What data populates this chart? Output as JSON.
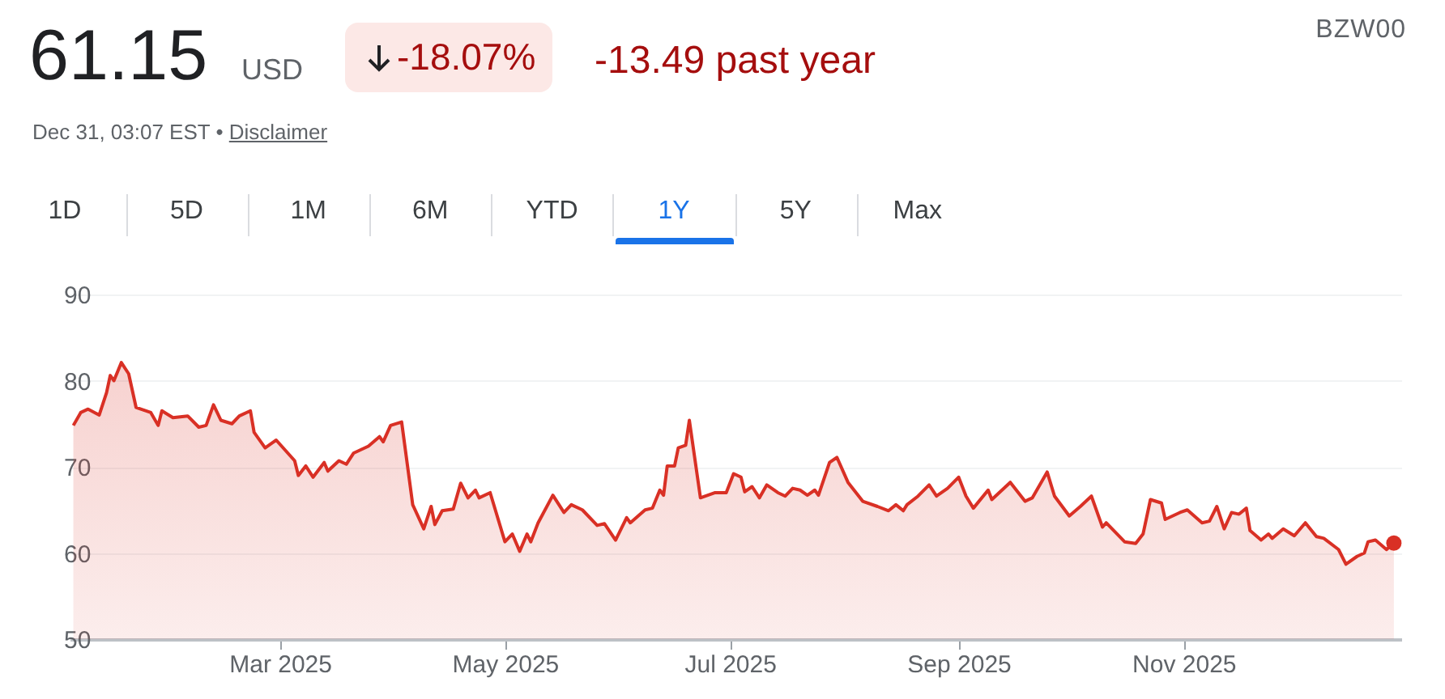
{
  "chart_data": {
    "type": "area",
    "title": "61.15",
    "annotations": [
      "USD",
      "-18.07%",
      "-13.49 past year",
      "Dec 31, 03:07 EST •",
      "Disclaimer",
      "BZW00",
      "1D",
      "5D",
      "1M",
      "6M",
      "YTD",
      "1Y",
      "5Y",
      "Max"
    ],
    "x": [
      "2025-01-04",
      "2025-01-06",
      "2025-01-08",
      "2025-01-11",
      "2025-01-13",
      "2025-01-14",
      "2025-01-15",
      "2025-01-17",
      "2025-01-19",
      "2025-01-21",
      "2025-01-25",
      "2025-01-27",
      "2025-01-28",
      "2025-01-31",
      "2025-02-04",
      "2025-02-07",
      "2025-02-09",
      "2025-02-11",
      "2025-02-13",
      "2025-02-16",
      "2025-02-18",
      "2025-02-21",
      "2025-02-22",
      "2025-02-25",
      "2025-02-28",
      "2025-03-05",
      "2025-03-06",
      "2025-03-08",
      "2025-03-10",
      "2025-03-13",
      "2025-03-14",
      "2025-03-17",
      "2025-03-19",
      "2025-03-21",
      "2025-03-25",
      "2025-03-28",
      "2025-03-29",
      "2025-03-31",
      "2025-04-03",
      "2025-04-06",
      "2025-04-09",
      "2025-04-11",
      "2025-04-12",
      "2025-04-14",
      "2025-04-17",
      "2025-04-19",
      "2025-04-21",
      "2025-04-23",
      "2025-04-24",
      "2025-04-27",
      "2025-05-01",
      "2025-05-03",
      "2025-05-05",
      "2025-05-07",
      "2025-05-08",
      "2025-05-10",
      "2025-05-14",
      "2025-05-17",
      "2025-05-19",
      "2025-05-22",
      "2025-05-26",
      "2025-05-28",
      "2025-05-31",
      "2025-06-03",
      "2025-06-04",
      "2025-06-08",
      "2025-06-10",
      "2025-06-12",
      "2025-06-13",
      "2025-06-14",
      "2025-06-16",
      "2025-06-17",
      "2025-06-19",
      "2025-06-20",
      "2025-06-23",
      "2025-06-27",
      "2025-06-30",
      "2025-07-02",
      "2025-07-04",
      "2025-07-05",
      "2025-07-07",
      "2025-07-09",
      "2025-07-11",
      "2025-07-14",
      "2025-07-16",
      "2025-07-18",
      "2025-07-20",
      "2025-07-22",
      "2025-07-24",
      "2025-07-25",
      "2025-07-28",
      "2025-07-30",
      "2025-08-02",
      "2025-08-06",
      "2025-08-10",
      "2025-08-13",
      "2025-08-15",
      "2025-08-17",
      "2025-08-18",
      "2025-08-21",
      "2025-08-24",
      "2025-08-26",
      "2025-08-29",
      "2025-09-01",
      "2025-09-03",
      "2025-09-05",
      "2025-09-09",
      "2025-09-10",
      "2025-09-15",
      "2025-09-19",
      "2025-09-21",
      "2025-09-25",
      "2025-09-27",
      "2025-10-01",
      "2025-10-04",
      "2025-10-07",
      "2025-10-10",
      "2025-10-11",
      "2025-10-16",
      "2025-10-19",
      "2025-10-21",
      "2025-10-23",
      "2025-10-26",
      "2025-10-27",
      "2025-10-31",
      "2025-11-02",
      "2025-11-06",
      "2025-11-08",
      "2025-11-10",
      "2025-11-12",
      "2025-11-14",
      "2025-11-16",
      "2025-11-18",
      "2025-11-19",
      "2025-11-22",
      "2025-11-24",
      "2025-11-25",
      "2025-11-28",
      "2025-12-01",
      "2025-12-04",
      "2025-12-07",
      "2025-12-09",
      "2025-12-13",
      "2025-12-15",
      "2025-12-18",
      "2025-12-20",
      "2025-12-21",
      "2025-12-23",
      "2025-12-26",
      "2025-12-28"
    ],
    "series": [
      {
        "color": "#d93025",
        "values": [
          74.8,
          76.3,
          76.7,
          76,
          78.6,
          80.6,
          80,
          82.1,
          80.8,
          76.9,
          76.3,
          74.8,
          76.5,
          75.7,
          75.9,
          74.6,
          74.8,
          77.2,
          75.4,
          75,
          75.9,
          76.5,
          74,
          72.2,
          73.1,
          70.7,
          69,
          70.1,
          68.8,
          70.5,
          69.5,
          70.7,
          70.3,
          71.6,
          72.4,
          73.5,
          72.9,
          74.8,
          75.2,
          65.6,
          62.8,
          65.4,
          63.3,
          64.9,
          65.1,
          68.1,
          66.4,
          67.3,
          66.4,
          67,
          61.3,
          62.2,
          60.2,
          62.2,
          61.3,
          63.5,
          66.7,
          64.7,
          65.6,
          65,
          63.2,
          63.4,
          61.5,
          64.1,
          63.5,
          65,
          65.2,
          67.3,
          66.7,
          70.1,
          70.1,
          72.2,
          72.5,
          75.4,
          66.4,
          67,
          67,
          69.2,
          68.8,
          67.1,
          67.7,
          66.4,
          67.9,
          67,
          66.6,
          67.5,
          67.3,
          66.7,
          67.3,
          66.7,
          70.5,
          71.1,
          68.2,
          66,
          65.4,
          64.9,
          65.6,
          64.9,
          65.6,
          66.6,
          67.9,
          66.6,
          67.5,
          68.8,
          66.6,
          65.2,
          67.3,
          66.2,
          68.2,
          66,
          66.4,
          69.4,
          66.6,
          64.3,
          65.4,
          66.6,
          63,
          63.5,
          61.3,
          61.1,
          62.2,
          66.2,
          65.8,
          63.9,
          64.7,
          65,
          63.5,
          63.7,
          65.4,
          62.8,
          64.7,
          64.5,
          65.2,
          62.6,
          61.5,
          62.2,
          61.7,
          62.8,
          62,
          63.5,
          61.9,
          61.7,
          60.4,
          58.7,
          59.6,
          60,
          61.3,
          61.5,
          60.4,
          61.15
        ]
      }
    ],
    "xlim": [
      "2025-01-03",
      "2025-12-30"
    ],
    "xticks": [
      {
        "value": "2025-03-01",
        "label": "Mar 2025"
      },
      {
        "value": "2025-05-01",
        "label": "May 2025"
      },
      {
        "value": "2025-07-01",
        "label": "Jul 2025"
      },
      {
        "value": "2025-09-01",
        "label": "Sep 2025"
      },
      {
        "value": "2025-11-01",
        "label": "Nov 2025"
      }
    ],
    "ylim": [
      50,
      90
    ],
    "yticks": [
      50,
      60,
      70,
      80,
      90
    ],
    "grid": "y"
  }
}
